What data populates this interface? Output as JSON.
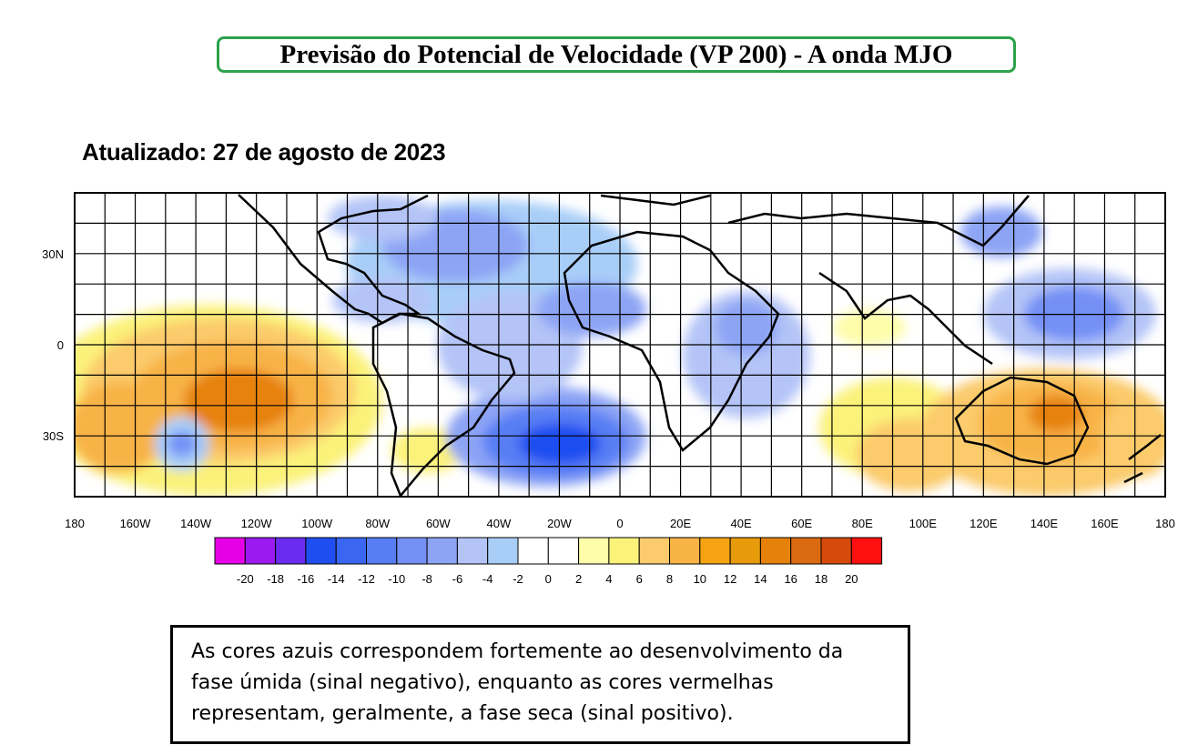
{
  "title": "Previsão do Potencial de Velocidade (VP 200) - A onda MJO",
  "updated": "Atualizado: 27 de agosto de 2023",
  "map": {
    "lon_labels": [
      "180",
      "160W",
      "140W",
      "120W",
      "100W",
      "80W",
      "60W",
      "40W",
      "20W",
      "0",
      "20E",
      "40E",
      "60E",
      "80E",
      "100E",
      "120E",
      "140E",
      "160E",
      "180"
    ],
    "lat_labels": [
      "30N",
      "0",
      "30S"
    ],
    "lat_range": [
      -50,
      50
    ],
    "lon_range": [
      -180,
      180
    ],
    "grid": true
  },
  "colorbar": {
    "colors": [
      "#e600e6",
      "#9a1aef",
      "#6a2df0",
      "#1f4ef0",
      "#3a66f2",
      "#587ef4",
      "#7590f5",
      "#8da4f5",
      "#b4c4f7",
      "#a8cef8",
      "#ffffff",
      "#ffffff",
      "#fdfdaa",
      "#fbf27a",
      "#fbcb6c",
      "#f8b347",
      "#f5a312",
      "#e79a0a",
      "#e6820c",
      "#db6b10",
      "#d64a0c",
      "#ff1010"
    ],
    "labels": [
      "-20",
      "-18",
      "-16",
      "-14",
      "-12",
      "-10",
      "-8",
      "-6",
      "-4",
      "-2",
      "0",
      "2",
      "4",
      "6",
      "8",
      "10",
      "12",
      "14",
      "16",
      "18",
      "20"
    ]
  },
  "note": {
    "line1": "As cores azuis correspondem fortemente ao desenvolvimento da",
    "line2": "fase úmida (sinal negativo), enquanto as cores vermelhas",
    "line3": "representam, geralmente, a fase seca (sinal positivo)."
  }
}
